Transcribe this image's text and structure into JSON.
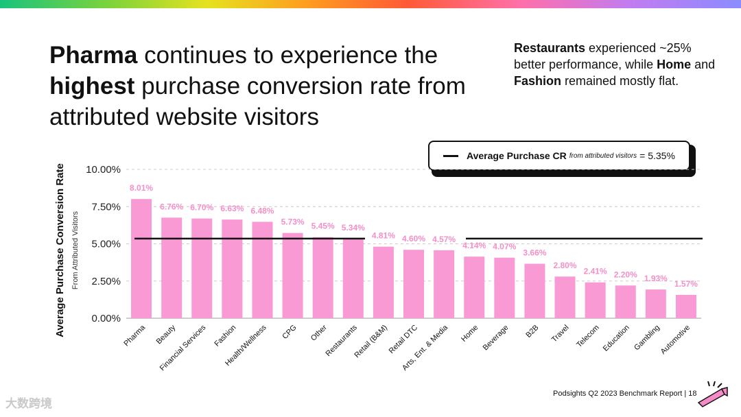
{
  "slide": {
    "headline": {
      "t1": "Pharma",
      "t2": " continues to experience the ",
      "t3": "highest",
      "t4": " purchase conversion rate from attributed website visitors"
    },
    "side_note": {
      "t1": "Restaurants",
      "t2": " experienced ~25% better performance, while ",
      "t3": "Home",
      "t4": " and ",
      "t5": "Fashion",
      "t6": " remained mostly flat."
    },
    "legend": {
      "label": "Average Purchase CR",
      "sublabel": "from attributed visitors",
      "value_text": "= 5.35%"
    },
    "footer": "Podsights Q2 2023 Benchmark Report | 18",
    "watermark": "大数跨境"
  },
  "colors": {
    "bar": "#f99ad5",
    "label": "#f390c8",
    "line": "#111111",
    "grid": "#cccccc"
  },
  "chart_data": {
    "type": "bar",
    "ylabel": "Average Purchase Conversion Rate",
    "ylabel_sub": "From Attributed Visitors",
    "categories": [
      "Pharma",
      "Beauty",
      "Financial Services",
      "Fashion",
      "Health/Wellness",
      "CPG",
      "Other",
      "Restaurants",
      "Retail (B&M)",
      "Retail DTC",
      "Arts, Ent. & Media",
      "Home",
      "Beverage",
      "B2B",
      "Travel",
      "Telecom",
      "Education",
      "Gambling",
      "Automotive"
    ],
    "values": [
      8.01,
      6.76,
      6.7,
      6.63,
      6.48,
      5.73,
      5.45,
      5.34,
      4.81,
      4.6,
      4.57,
      4.14,
      4.07,
      3.66,
      2.8,
      2.41,
      2.2,
      1.93,
      1.57
    ],
    "labels": [
      "8.01%",
      "6.76%",
      "6.70%",
      "6.63%",
      "6.48%",
      "5.73%",
      "5.45%",
      "5.34%",
      "4.81%",
      "4.60%",
      "4.57%",
      "4.14%",
      "4.07%",
      "3.66%",
      "2.80%",
      "2.41%",
      "2.20%",
      "1.93%",
      "1.57%"
    ],
    "ylim": [
      0,
      10
    ],
    "yticks": [
      0,
      2.5,
      5,
      7.5,
      10
    ],
    "ytick_labels": [
      "0.00%",
      "2.50%",
      "5.00%",
      "7.50%",
      "10.00%"
    ],
    "average": 5.35,
    "grid": true
  }
}
